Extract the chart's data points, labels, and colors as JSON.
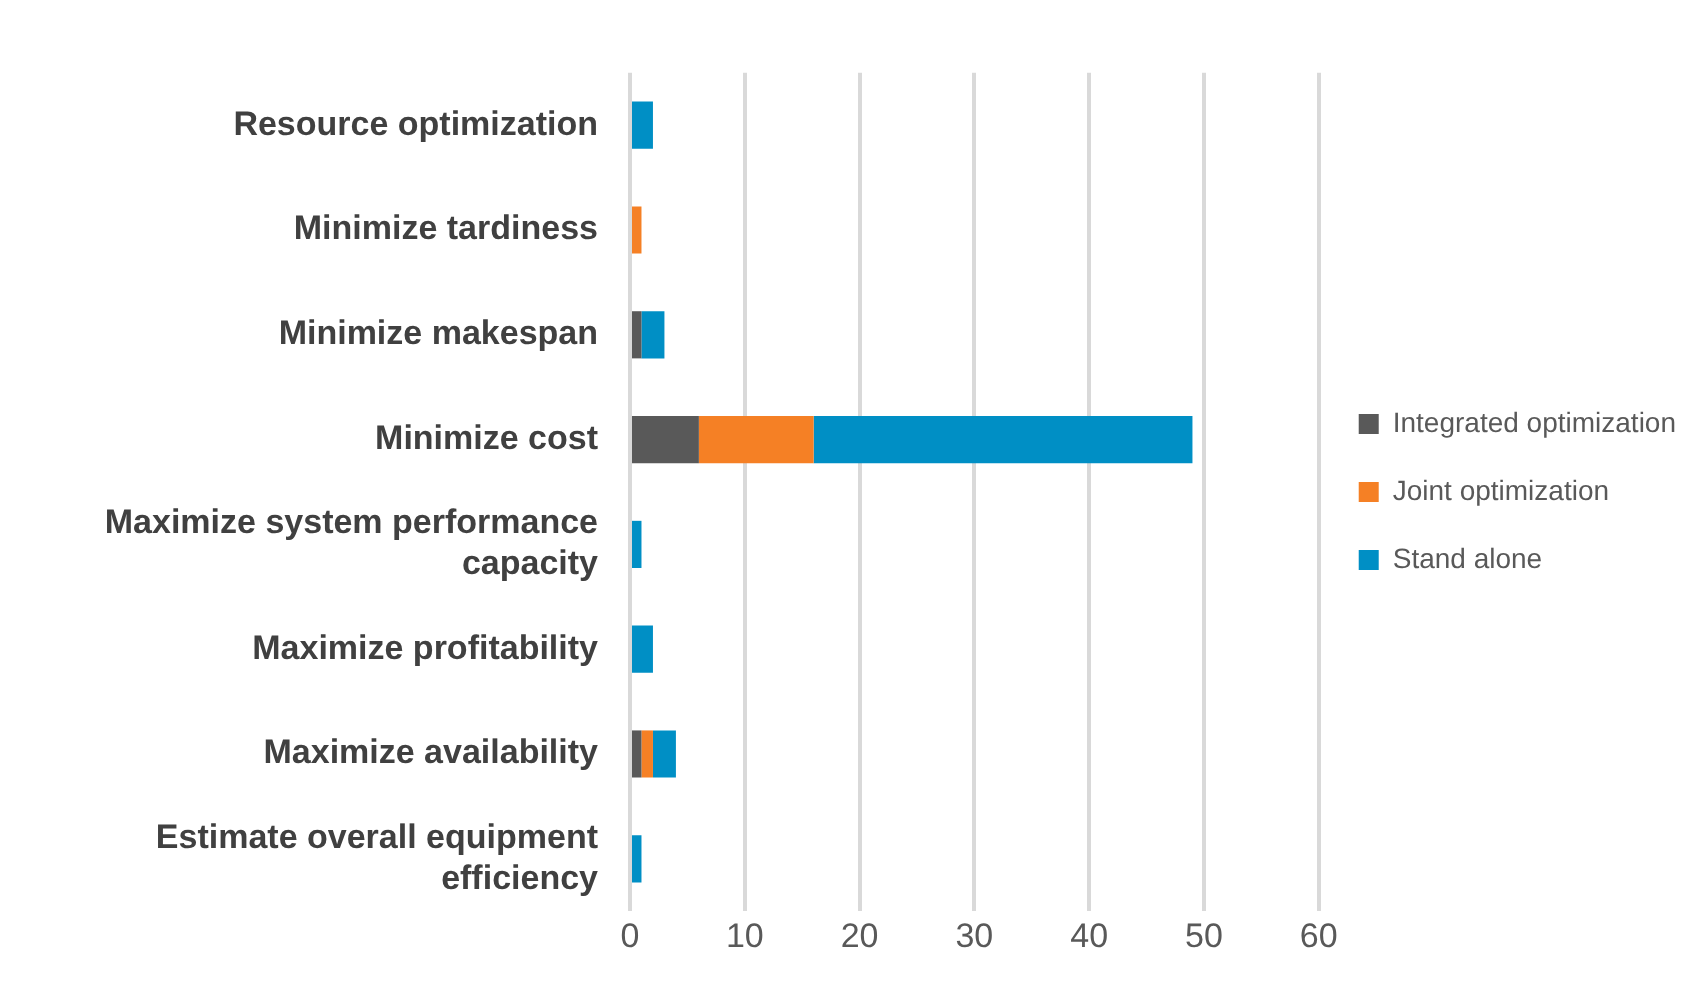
{
  "chart_data": {
    "type": "bar",
    "orientation": "horizontal",
    "stacked": true,
    "categories": [
      "Resource optimization",
      "Minimize tardiness",
      "Minimize makespan",
      "Minimize cost",
      "Maximize system performance capacity",
      "Maximize profitability",
      "Maximize availability",
      "Estimate overall equipment efficiency"
    ],
    "series": [
      {
        "name": "Integrated optimization",
        "color": "#595959",
        "values": [
          0,
          0,
          1,
          6,
          0,
          0,
          1,
          0
        ]
      },
      {
        "name": "Joint optimization",
        "color": "#f58025",
        "values": [
          0,
          1,
          0,
          10,
          0,
          0,
          1,
          0
        ]
      },
      {
        "name": "Stand alone",
        "color": "#008fc5",
        "values": [
          2,
          0,
          2,
          33,
          1,
          2,
          2,
          1
        ]
      }
    ],
    "xlim": [
      0,
      60
    ],
    "xticks": [
      0,
      10,
      20,
      30,
      40,
      50,
      60
    ],
    "grid": "x",
    "legend": "right"
  }
}
